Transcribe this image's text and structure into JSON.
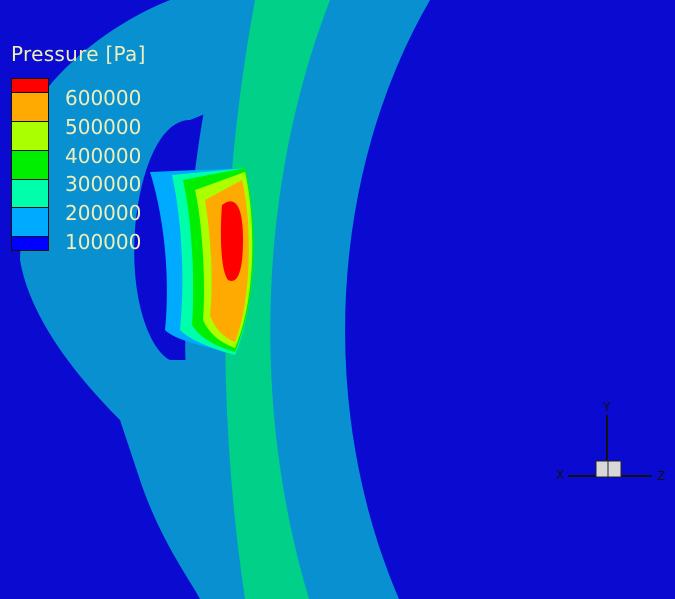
{
  "legend": {
    "title": "Pressure [Pa]",
    "levels": [
      {
        "label": "600000",
        "color": "#ff0000"
      },
      {
        "label": "500000",
        "color": "#ffaa00"
      },
      {
        "label": "400000",
        "color": "#aaff00"
      },
      {
        "label": "300000",
        "color": "#00ee00"
      },
      {
        "label": "200000",
        "color": "#00ffaa"
      },
      {
        "label": "100000",
        "color": "#00aaff"
      },
      {
        "label": "",
        "color": "#0000ff"
      }
    ]
  },
  "colors": {
    "background": "#0a0ad0",
    "band_light_blue": "#0890d0",
    "band_green": "#00d088"
  },
  "axes": {
    "x": "X",
    "y": "Y",
    "z": "Z"
  }
}
